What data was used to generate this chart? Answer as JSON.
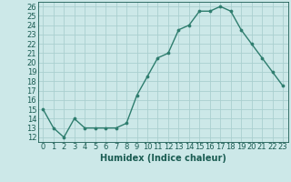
{
  "x": [
    0,
    1,
    2,
    3,
    4,
    5,
    6,
    7,
    8,
    9,
    10,
    11,
    12,
    13,
    14,
    15,
    16,
    17,
    18,
    19,
    20,
    21,
    22,
    23
  ],
  "y": [
    15,
    13,
    12,
    14,
    13,
    13,
    13,
    13,
    13.5,
    16.5,
    18.5,
    20.5,
    21,
    23.5,
    24,
    25.5,
    25.5,
    26,
    25.5,
    23.5,
    22,
    20.5,
    19,
    17.5
  ],
  "line_color": "#2e7d6e",
  "marker_color": "#2e7d6e",
  "bg_color": "#cce8e8",
  "grid_color": "#aacfcf",
  "xlabel": "Humidex (Indice chaleur)",
  "ylim": [
    11.5,
    26.5
  ],
  "xlim": [
    -0.5,
    23.5
  ],
  "yticks": [
    12,
    13,
    14,
    15,
    16,
    17,
    18,
    19,
    20,
    21,
    22,
    23,
    24,
    25,
    26
  ],
  "xticks": [
    0,
    1,
    2,
    3,
    4,
    5,
    6,
    7,
    8,
    9,
    10,
    11,
    12,
    13,
    14,
    15,
    16,
    17,
    18,
    19,
    20,
    21,
    22,
    23
  ],
  "xtick_labels": [
    "0",
    "1",
    "2",
    "3",
    "4",
    "5",
    "6",
    "7",
    "8",
    "9",
    "10",
    "11",
    "12",
    "13",
    "14",
    "15",
    "16",
    "17",
    "18",
    "19",
    "20",
    "21",
    "22",
    "23"
  ],
  "tick_fontsize": 6,
  "xlabel_fontsize": 7,
  "label_color": "#1a5c52"
}
